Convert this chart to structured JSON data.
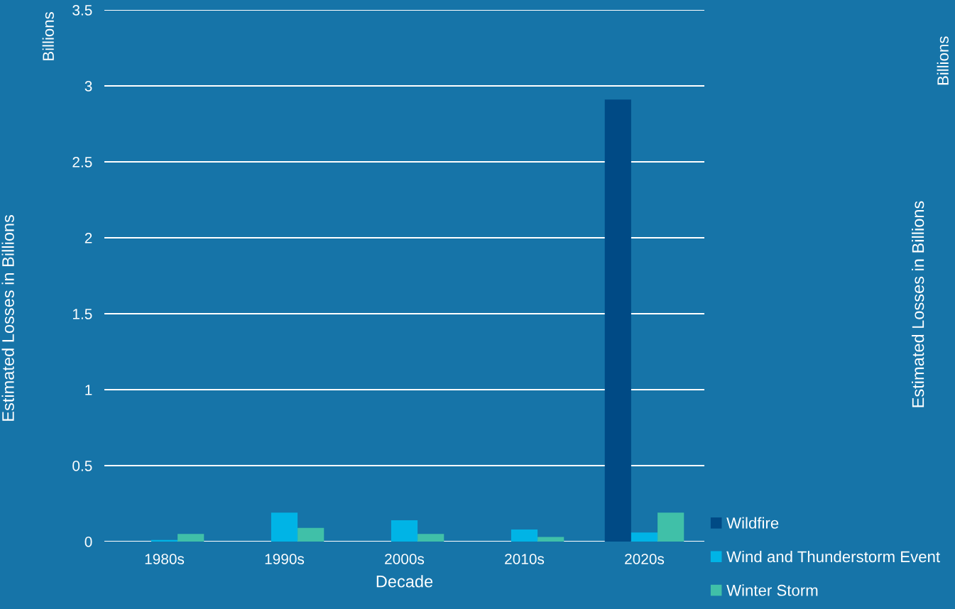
{
  "chart_data": {
    "type": "bar",
    "xlabel": "Decade",
    "ylabel": "Estimated Losses in Billions",
    "categories": [
      "1980s",
      "1990s",
      "2000s",
      "2010s",
      "2020s"
    ],
    "series": [
      {
        "name": "Wildfire",
        "color": "#004a85",
        "values": [
          0,
          0,
          0,
          0,
          2.91
        ]
      },
      {
        "name": "Wind and Thunderstorm Event",
        "color": "#00b4e6",
        "values": [
          0.01,
          0.19,
          0.14,
          0.08,
          0.06
        ]
      },
      {
        "name": "Winter Storm",
        "color": "#40c0a8",
        "values": [
          0.05,
          0.09,
          0.05,
          0.03,
          0.19
        ]
      }
    ],
    "ylim": [
      0,
      3.5
    ],
    "yticks": [
      0,
      0.5,
      1,
      1.5,
      2,
      2.5,
      3,
      3.5
    ],
    "grid": "y",
    "legend": "bottom right",
    "annotations": [
      "Billions",
      "Estimated Losses in Billions",
      "Billions"
    ]
  }
}
